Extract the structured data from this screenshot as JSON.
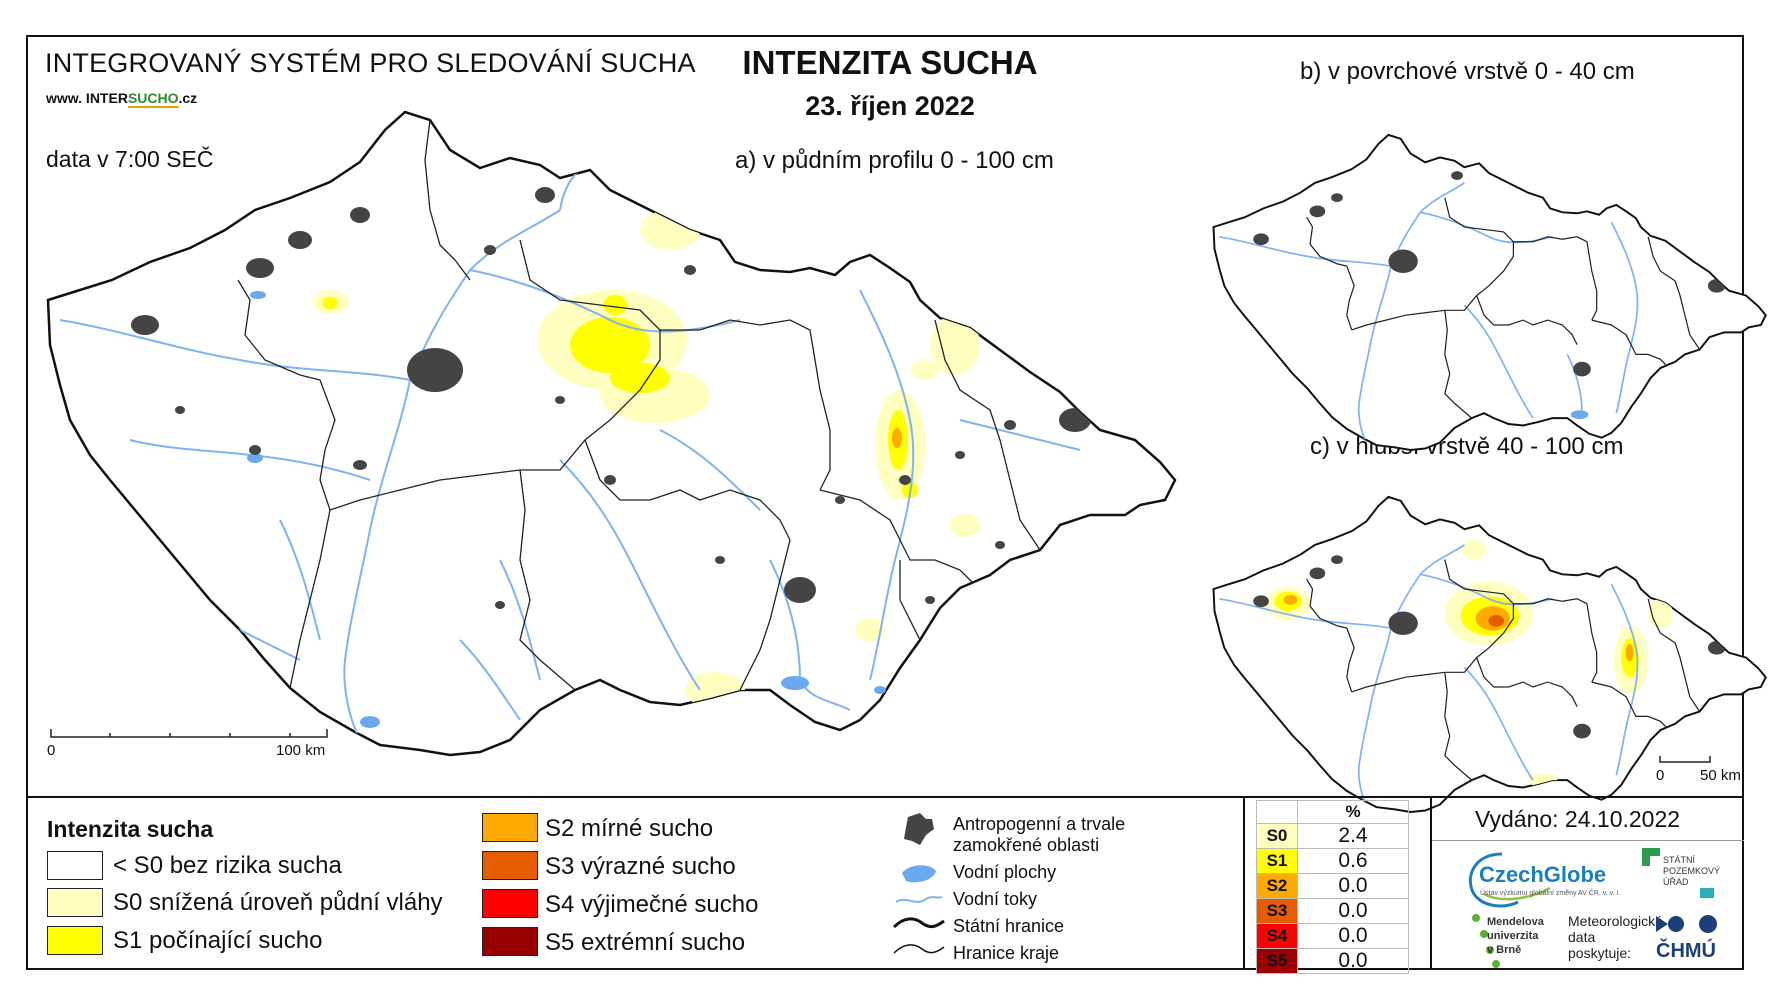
{
  "header": {
    "system_title": "INTEGROVANÝ SYSTÉM PRO SLEDOVÁNÍ SUCHA",
    "website_prefix": "www. INTER",
    "website_accent": "SUCHO",
    "website_suffix": ".cz",
    "data_time": "data v 7:00 SEČ",
    "main_title": "INTENZITA SUCHA",
    "date": "23. říjen 2022"
  },
  "maps": {
    "a_title": "a) v půdním profilu 0 - 100 cm",
    "b_title": "b) v povrchové vrstvě 0 - 40 cm",
    "c_title": "c) v hlubší vrstvě 40 - 100 cm",
    "scale_main": {
      "start": "0",
      "end": "100 km"
    },
    "scale_small": {
      "start": "0",
      "end": "50 km"
    }
  },
  "legend": {
    "title": "Intenzita sucha",
    "classes": [
      {
        "label": "< S0 bez rizika sucha",
        "color": "#ffffff"
      },
      {
        "label": "S0 snížená úroveň půdní vláhy",
        "color": "#ffffc0"
      },
      {
        "label": "S1 počínající sucho",
        "color": "#ffff00"
      },
      {
        "label": "S2 mírné sucho",
        "color": "#ffaa00"
      },
      {
        "label": "S3 výrazné sucho",
        "color": "#e65c00"
      },
      {
        "label": "S4 výjimečné sucho",
        "color": "#ff0000"
      },
      {
        "label": "S5 extrémní sucho",
        "color": "#990000"
      }
    ],
    "symbols": {
      "urban": "Antropogenní a trvale zamokřené oblasti",
      "water": "Vodní plochy",
      "rivers": "Vodní toky",
      "state_border": "Státní hranice",
      "region_border": "Hranice kraje"
    }
  },
  "percent_table": {
    "header": "%",
    "rows": [
      {
        "cls": "S0",
        "value": "2.4",
        "color": "#ffffc0"
      },
      {
        "cls": "S1",
        "value": "0.6",
        "color": "#ffff00"
      },
      {
        "cls": "S2",
        "value": "0.0",
        "color": "#ffaa00"
      },
      {
        "cls": "S3",
        "value": "0.0",
        "color": "#e65c00"
      },
      {
        "cls": "S4",
        "value": "0.0",
        "color": "#ff0000"
      },
      {
        "cls": "S5",
        "value": "0.0",
        "color": "#990000"
      }
    ]
  },
  "footer": {
    "issued": "Vydáno: 24.10.2022",
    "czechglobe": "CzechGlobe",
    "czechglobe_sub": "Ústav výzkumu globální změny AV ČR, v. v. i.",
    "spu": "STÁTNÍ POZEMKOVÝ ÚŘAD",
    "mendel_1": "Mendelova",
    "mendel_2": "univerzita",
    "mendel_3": "v Brně",
    "meteo_1": "Meteorologická",
    "meteo_2": "data",
    "meteo_3": "poskytuje:",
    "chmu": "ČHMÚ"
  },
  "colors": {
    "urban": "#444444",
    "water": "#6aa8f0",
    "river": "#7fb2f0",
    "border": "#111111"
  }
}
